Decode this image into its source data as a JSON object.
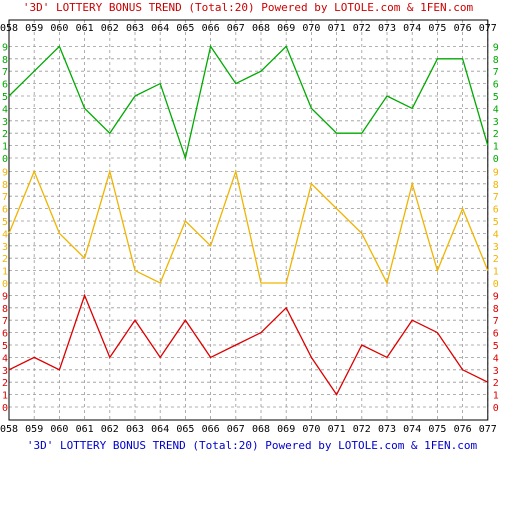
{
  "title_top": "'3D' LOTTERY BONUS TREND (Total:20)  Powered by LOTOLE.com & 1FEN.com",
  "title_bottom": "'3D' LOTTERY BONUS TREND (Total:20)  Powered by LOTOLE.com & 1FEN.com",
  "colors": {
    "title_top": "#cc0000",
    "title_bottom": "#0000cc",
    "green": "#00aa00",
    "yellow": "#f0b400",
    "red": "#dd0000",
    "grid": "#999999",
    "frame": "#000000"
  },
  "chart_data": {
    "type": "line",
    "categories": [
      "058",
      "059",
      "060",
      "061",
      "062",
      "063",
      "064",
      "065",
      "066",
      "067",
      "068",
      "069",
      "070",
      "071",
      "072",
      "073",
      "074",
      "075",
      "076",
      "077"
    ],
    "y_ticks": [
      0,
      1,
      2,
      3,
      4,
      5,
      6,
      7,
      8,
      9
    ],
    "ylim": [
      0,
      9
    ],
    "grid": true,
    "series": [
      {
        "panel": "top",
        "color": "green",
        "values": [
          5,
          7,
          9,
          4,
          2,
          5,
          6,
          0,
          9,
          6,
          7,
          9,
          4,
          2,
          2,
          5,
          4,
          8,
          8,
          1
        ]
      },
      {
        "panel": "middle",
        "color": "yellow",
        "values": [
          4,
          9,
          4,
          2,
          9,
          1,
          0,
          5,
          3,
          9,
          0,
          0,
          8,
          6,
          4,
          0,
          8,
          1,
          6,
          1
        ]
      },
      {
        "panel": "bottom",
        "color": "red",
        "values": [
          3,
          4,
          3,
          9,
          4,
          7,
          4,
          7,
          4,
          5,
          6,
          8,
          4,
          1,
          5,
          4,
          7,
          6,
          3,
          2
        ]
      }
    ]
  }
}
